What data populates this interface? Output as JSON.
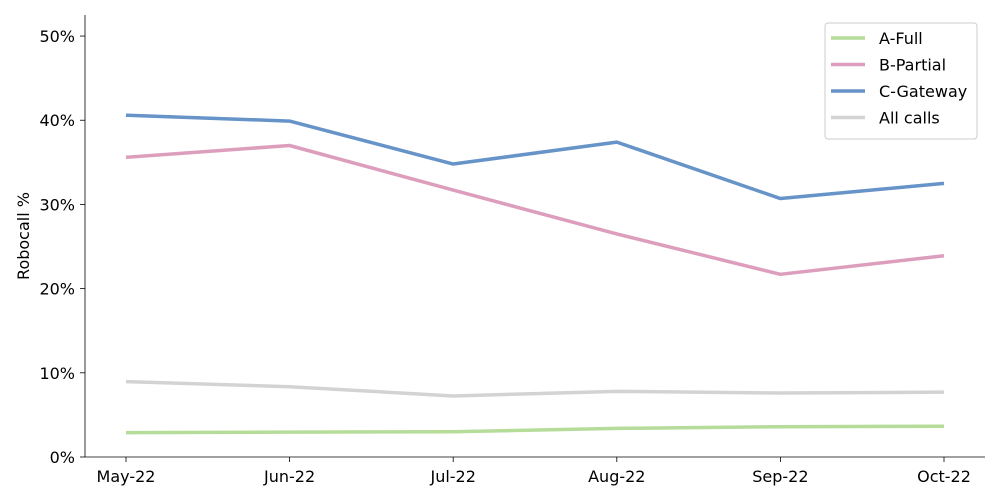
{
  "chart_data": {
    "type": "line",
    "title": "",
    "xlabel": "",
    "ylabel": "Robocall %",
    "x": [
      "May-22",
      "Jun-22",
      "Jul-22",
      "Aug-22",
      "Sep-22",
      "Oct-22"
    ],
    "ylim": [
      0,
      52.5
    ],
    "yticks": [
      0,
      10,
      20,
      30,
      40,
      50
    ],
    "ytick_labels": [
      "0%",
      "10%",
      "20%",
      "30%",
      "40%",
      "50%"
    ],
    "grid": false,
    "legend_position": "top-right",
    "series": [
      {
        "name": "A-Full",
        "color": "#b6dc9a",
        "values": [
          2.9,
          2.95,
          3.0,
          3.4,
          3.6,
          3.65
        ]
      },
      {
        "name": "B-Partial",
        "color": "#dc9ebc",
        "values": [
          35.6,
          37.0,
          31.7,
          26.5,
          21.7,
          23.9
        ]
      },
      {
        "name": "C-Gateway",
        "color": "#6693c8",
        "values": [
          40.6,
          39.9,
          34.8,
          37.4,
          30.7,
          32.5
        ]
      },
      {
        "name": "All calls",
        "color": "#d3d3d3",
        "values": [
          8.95,
          8.35,
          7.25,
          7.8,
          7.6,
          7.7
        ]
      }
    ]
  }
}
